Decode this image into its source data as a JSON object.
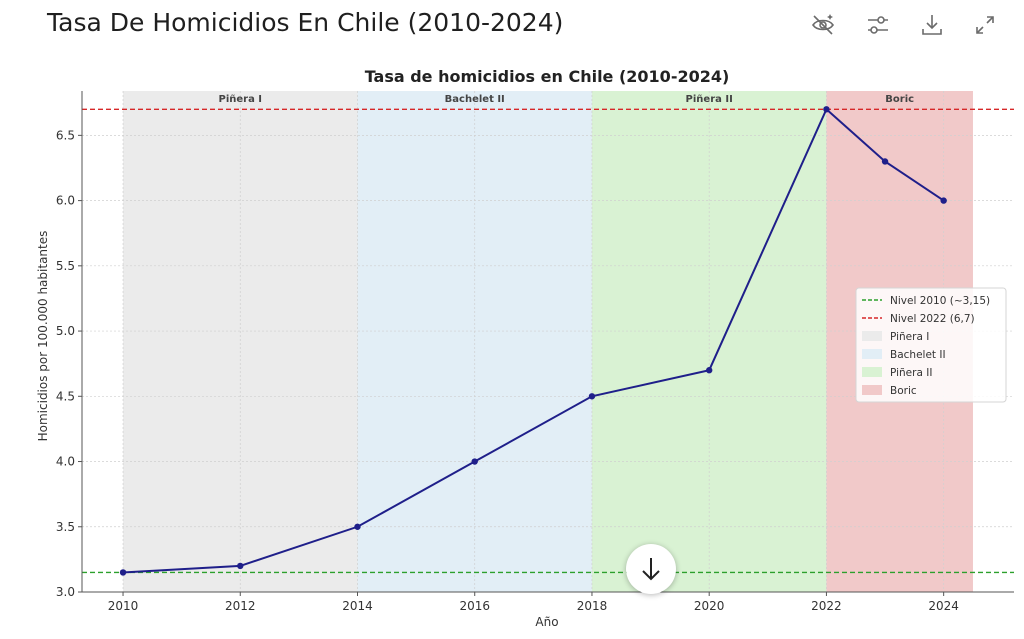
{
  "header": {
    "title": "Tasa De Homicidios En Chile (2010-2024)",
    "buttons": [
      {
        "name": "hide-chart-button",
        "icon": "eye-slash-sparkle-icon"
      },
      {
        "name": "filter-settings-button",
        "icon": "sliders-icon"
      },
      {
        "name": "download-button",
        "icon": "download-icon"
      },
      {
        "name": "expand-button",
        "icon": "expand-icon"
      }
    ]
  },
  "scroll_button": {
    "icon": "arrow-down-icon"
  },
  "chart_data": {
    "type": "line",
    "title": "Tasa de homicidios en Chile (2010-2024)",
    "xlabel": "Año",
    "ylabel": "Homicidios por 100.000 habitantes",
    "xlim": [
      2009.3,
      2025.2
    ],
    "ylim": [
      3.0,
      6.84
    ],
    "x_ticks": [
      2010,
      2012,
      2014,
      2016,
      2018,
      2020,
      2022,
      2024
    ],
    "y_ticks": [
      3.0,
      3.5,
      4.0,
      4.5,
      5.0,
      5.5,
      6.0,
      6.5
    ],
    "x_tick_labels": [
      "2010",
      "2012",
      "2014",
      "2016",
      "2018",
      "2020",
      "2022",
      "2024"
    ],
    "y_tick_labels": [
      "3.0",
      "3.5",
      "4.0",
      "4.5",
      "5.0",
      "5.5",
      "6.0",
      "6.5"
    ],
    "grid": true,
    "series": [
      {
        "color": "#1f1f8a",
        "x": [
          2010,
          2012,
          2014,
          2016,
          2018,
          2020,
          2022,
          2023,
          2024
        ],
        "y": [
          3.15,
          3.2,
          3.5,
          4.0,
          4.5,
          4.7,
          6.7,
          6.3,
          6.0
        ]
      }
    ],
    "reference_lines": [
      {
        "label": "Nivel 2010 (~3,15)",
        "y": 3.15,
        "color": "#2ca02c",
        "style": "dashed"
      },
      {
        "label": "Nivel 2022 (6,7)",
        "y": 6.7,
        "color": "#d62728",
        "style": "dashed"
      }
    ],
    "periods": [
      {
        "label": "Piñera I",
        "start": 2010,
        "end": 2014,
        "color": "#ebebeb"
      },
      {
        "label": "Bachelet II",
        "start": 2014,
        "end": 2018,
        "color": "#e2eef6"
      },
      {
        "label": "Piñera II",
        "start": 2018,
        "end": 2022,
        "color": "#d9f2d3"
      },
      {
        "label": "Boric",
        "start": 2022,
        "end": 2024.5,
        "color": "#f1c9c9"
      }
    ],
    "legend": {
      "placement": "center-right",
      "entries": [
        "Nivel 2010 (~3,15)",
        "Nivel 2022 (6,7)",
        "Piñera I",
        "Bachelet II",
        "Piñera II",
        "Boric"
      ]
    }
  }
}
